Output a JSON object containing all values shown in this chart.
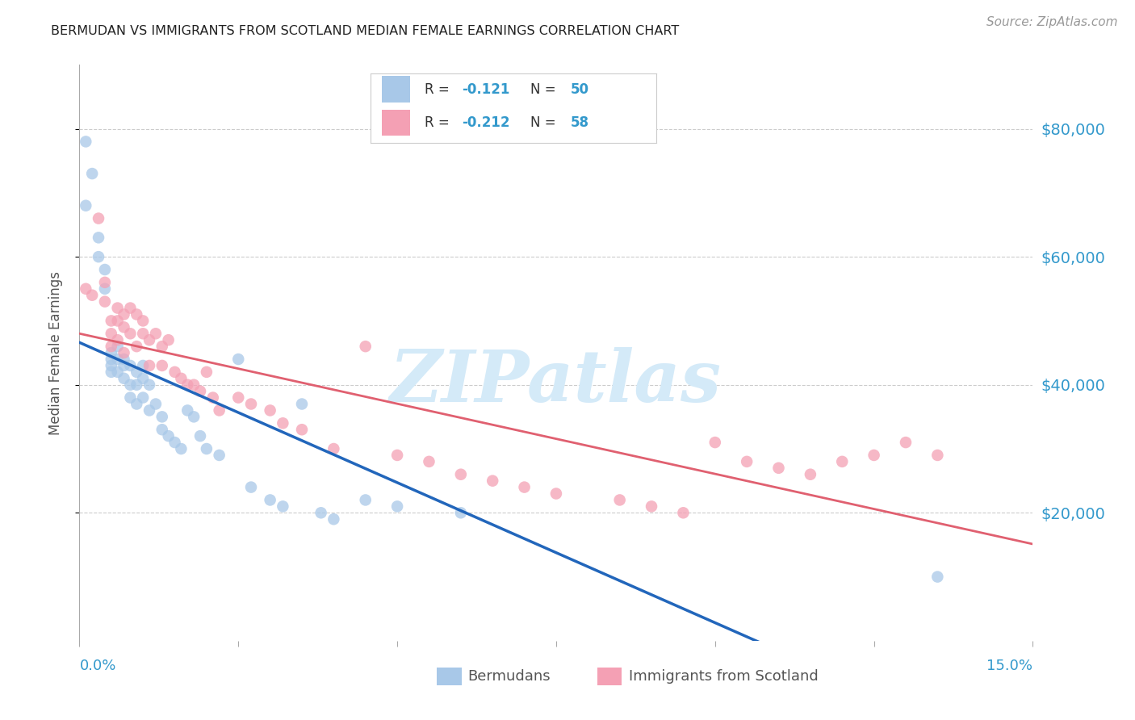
{
  "title": "BERMUDAN VS IMMIGRANTS FROM SCOTLAND MEDIAN FEMALE EARNINGS CORRELATION CHART",
  "source": "Source: ZipAtlas.com",
  "ylabel": "Median Female Earnings",
  "right_ytick_labels": [
    "$20,000",
    "$40,000",
    "$60,000",
    "$80,000"
  ],
  "right_ytick_values": [
    20000,
    40000,
    60000,
    80000
  ],
  "ylim": [
    0,
    90000
  ],
  "xlim": [
    0.0,
    0.15
  ],
  "watermark_text": "ZIPatlas",
  "blue_color": "#a8c8e8",
  "pink_color": "#f4a0b4",
  "blue_line_color": "#2266bb",
  "pink_line_color": "#e06070",
  "axis_label_color": "#3399cc",
  "grid_color": "#cccccc",
  "title_color": "#222222",
  "ylabel_color": "#555555",
  "source_color": "#999999",
  "watermark_color": "#d4eaf8",
  "legend_r1_val": "-0.121",
  "legend_n1_val": "50",
  "legend_r2_val": "-0.212",
  "legend_n2_val": "58",
  "bermudans_x": [
    0.001,
    0.001,
    0.002,
    0.003,
    0.003,
    0.004,
    0.004,
    0.005,
    0.005,
    0.005,
    0.005,
    0.006,
    0.006,
    0.006,
    0.007,
    0.007,
    0.007,
    0.008,
    0.008,
    0.008,
    0.009,
    0.009,
    0.009,
    0.01,
    0.01,
    0.01,
    0.011,
    0.011,
    0.012,
    0.013,
    0.013,
    0.014,
    0.015,
    0.016,
    0.017,
    0.018,
    0.019,
    0.02,
    0.022,
    0.025,
    0.027,
    0.03,
    0.032,
    0.035,
    0.038,
    0.04,
    0.045,
    0.05,
    0.06,
    0.135
  ],
  "bermudans_y": [
    78000,
    68000,
    73000,
    63000,
    60000,
    58000,
    55000,
    45000,
    44000,
    43000,
    42000,
    46000,
    44000,
    42000,
    44000,
    43000,
    41000,
    43000,
    40000,
    38000,
    42000,
    40000,
    37000,
    43000,
    41000,
    38000,
    40000,
    36000,
    37000,
    35000,
    33000,
    32000,
    31000,
    30000,
    36000,
    35000,
    32000,
    30000,
    29000,
    44000,
    24000,
    22000,
    21000,
    37000,
    20000,
    19000,
    22000,
    21000,
    20000,
    10000
  ],
  "scotland_x": [
    0.001,
    0.002,
    0.003,
    0.004,
    0.004,
    0.005,
    0.005,
    0.005,
    0.006,
    0.006,
    0.006,
    0.007,
    0.007,
    0.007,
    0.008,
    0.008,
    0.009,
    0.009,
    0.01,
    0.01,
    0.011,
    0.011,
    0.012,
    0.013,
    0.013,
    0.014,
    0.015,
    0.016,
    0.017,
    0.018,
    0.019,
    0.02,
    0.021,
    0.022,
    0.025,
    0.027,
    0.03,
    0.032,
    0.035,
    0.04,
    0.045,
    0.05,
    0.055,
    0.06,
    0.065,
    0.07,
    0.075,
    0.085,
    0.09,
    0.095,
    0.1,
    0.105,
    0.11,
    0.115,
    0.12,
    0.125,
    0.13,
    0.135
  ],
  "scotland_y": [
    55000,
    54000,
    66000,
    56000,
    53000,
    50000,
    48000,
    46000,
    52000,
    50000,
    47000,
    51000,
    49000,
    45000,
    52000,
    48000,
    51000,
    46000,
    50000,
    48000,
    47000,
    43000,
    48000,
    46000,
    43000,
    47000,
    42000,
    41000,
    40000,
    40000,
    39000,
    42000,
    38000,
    36000,
    38000,
    37000,
    36000,
    34000,
    33000,
    30000,
    46000,
    29000,
    28000,
    26000,
    25000,
    24000,
    23000,
    22000,
    21000,
    20000,
    31000,
    28000,
    27000,
    26000,
    28000,
    29000,
    31000,
    29000
  ]
}
